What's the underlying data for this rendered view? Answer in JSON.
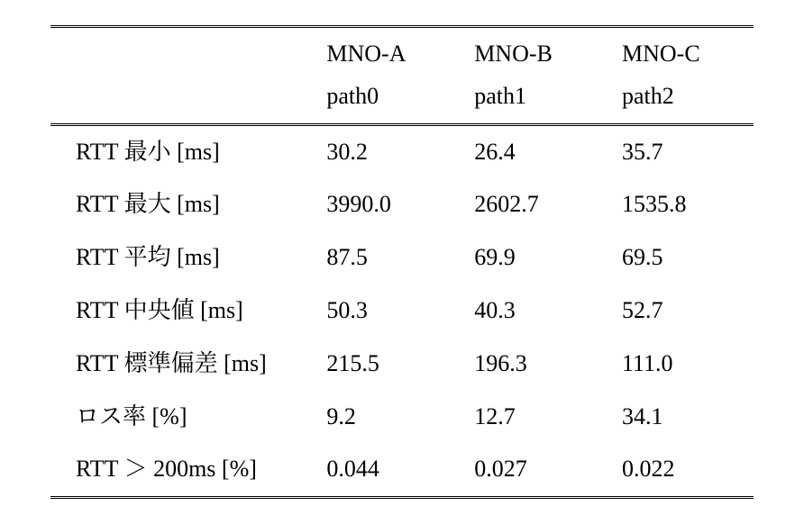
{
  "table": {
    "type": "table",
    "background_color": "#ffffff",
    "text_color": "#000000",
    "rule_color": "#000000",
    "font_family": "Times New Roman / Mincho serif",
    "font_size_pt": 20,
    "line_height": 1.8,
    "column_widths_pct": [
      38,
      21,
      21,
      20
    ],
    "alignment": [
      "left",
      "left",
      "left",
      "left"
    ],
    "rules": {
      "top": "double",
      "header_bottom": "double",
      "bottom": "double"
    },
    "columns": [
      {
        "line1": "",
        "line2": ""
      },
      {
        "line1": "MNO-A",
        "line2": "path0"
      },
      {
        "line1": "MNO-B",
        "line2": "path1"
      },
      {
        "line1": "MNO-C",
        "line2": "path2"
      }
    ],
    "rows": [
      {
        "label": "RTT 最小 [ms]",
        "values": [
          "30.2",
          "26.4",
          "35.7"
        ]
      },
      {
        "label": "RTT 最大 [ms]",
        "values": [
          "3990.0",
          "2602.7",
          "1535.8"
        ]
      },
      {
        "label": "RTT 平均 [ms]",
        "values": [
          "87.5",
          "69.9",
          "69.5"
        ]
      },
      {
        "label": "RTT 中央値 [ms]",
        "values": [
          "50.3",
          "40.3",
          "52.7"
        ]
      },
      {
        "label": "RTT 標準偏差 [ms]",
        "values": [
          "215.5",
          "196.3",
          "111.0"
        ]
      },
      {
        "label": "ロス率 [%]",
        "values": [
          "9.2",
          "12.7",
          "34.1"
        ]
      },
      {
        "label": "RTT ＞ 200ms [%]",
        "values": [
          "0.044",
          "0.027",
          "0.022"
        ]
      }
    ]
  }
}
